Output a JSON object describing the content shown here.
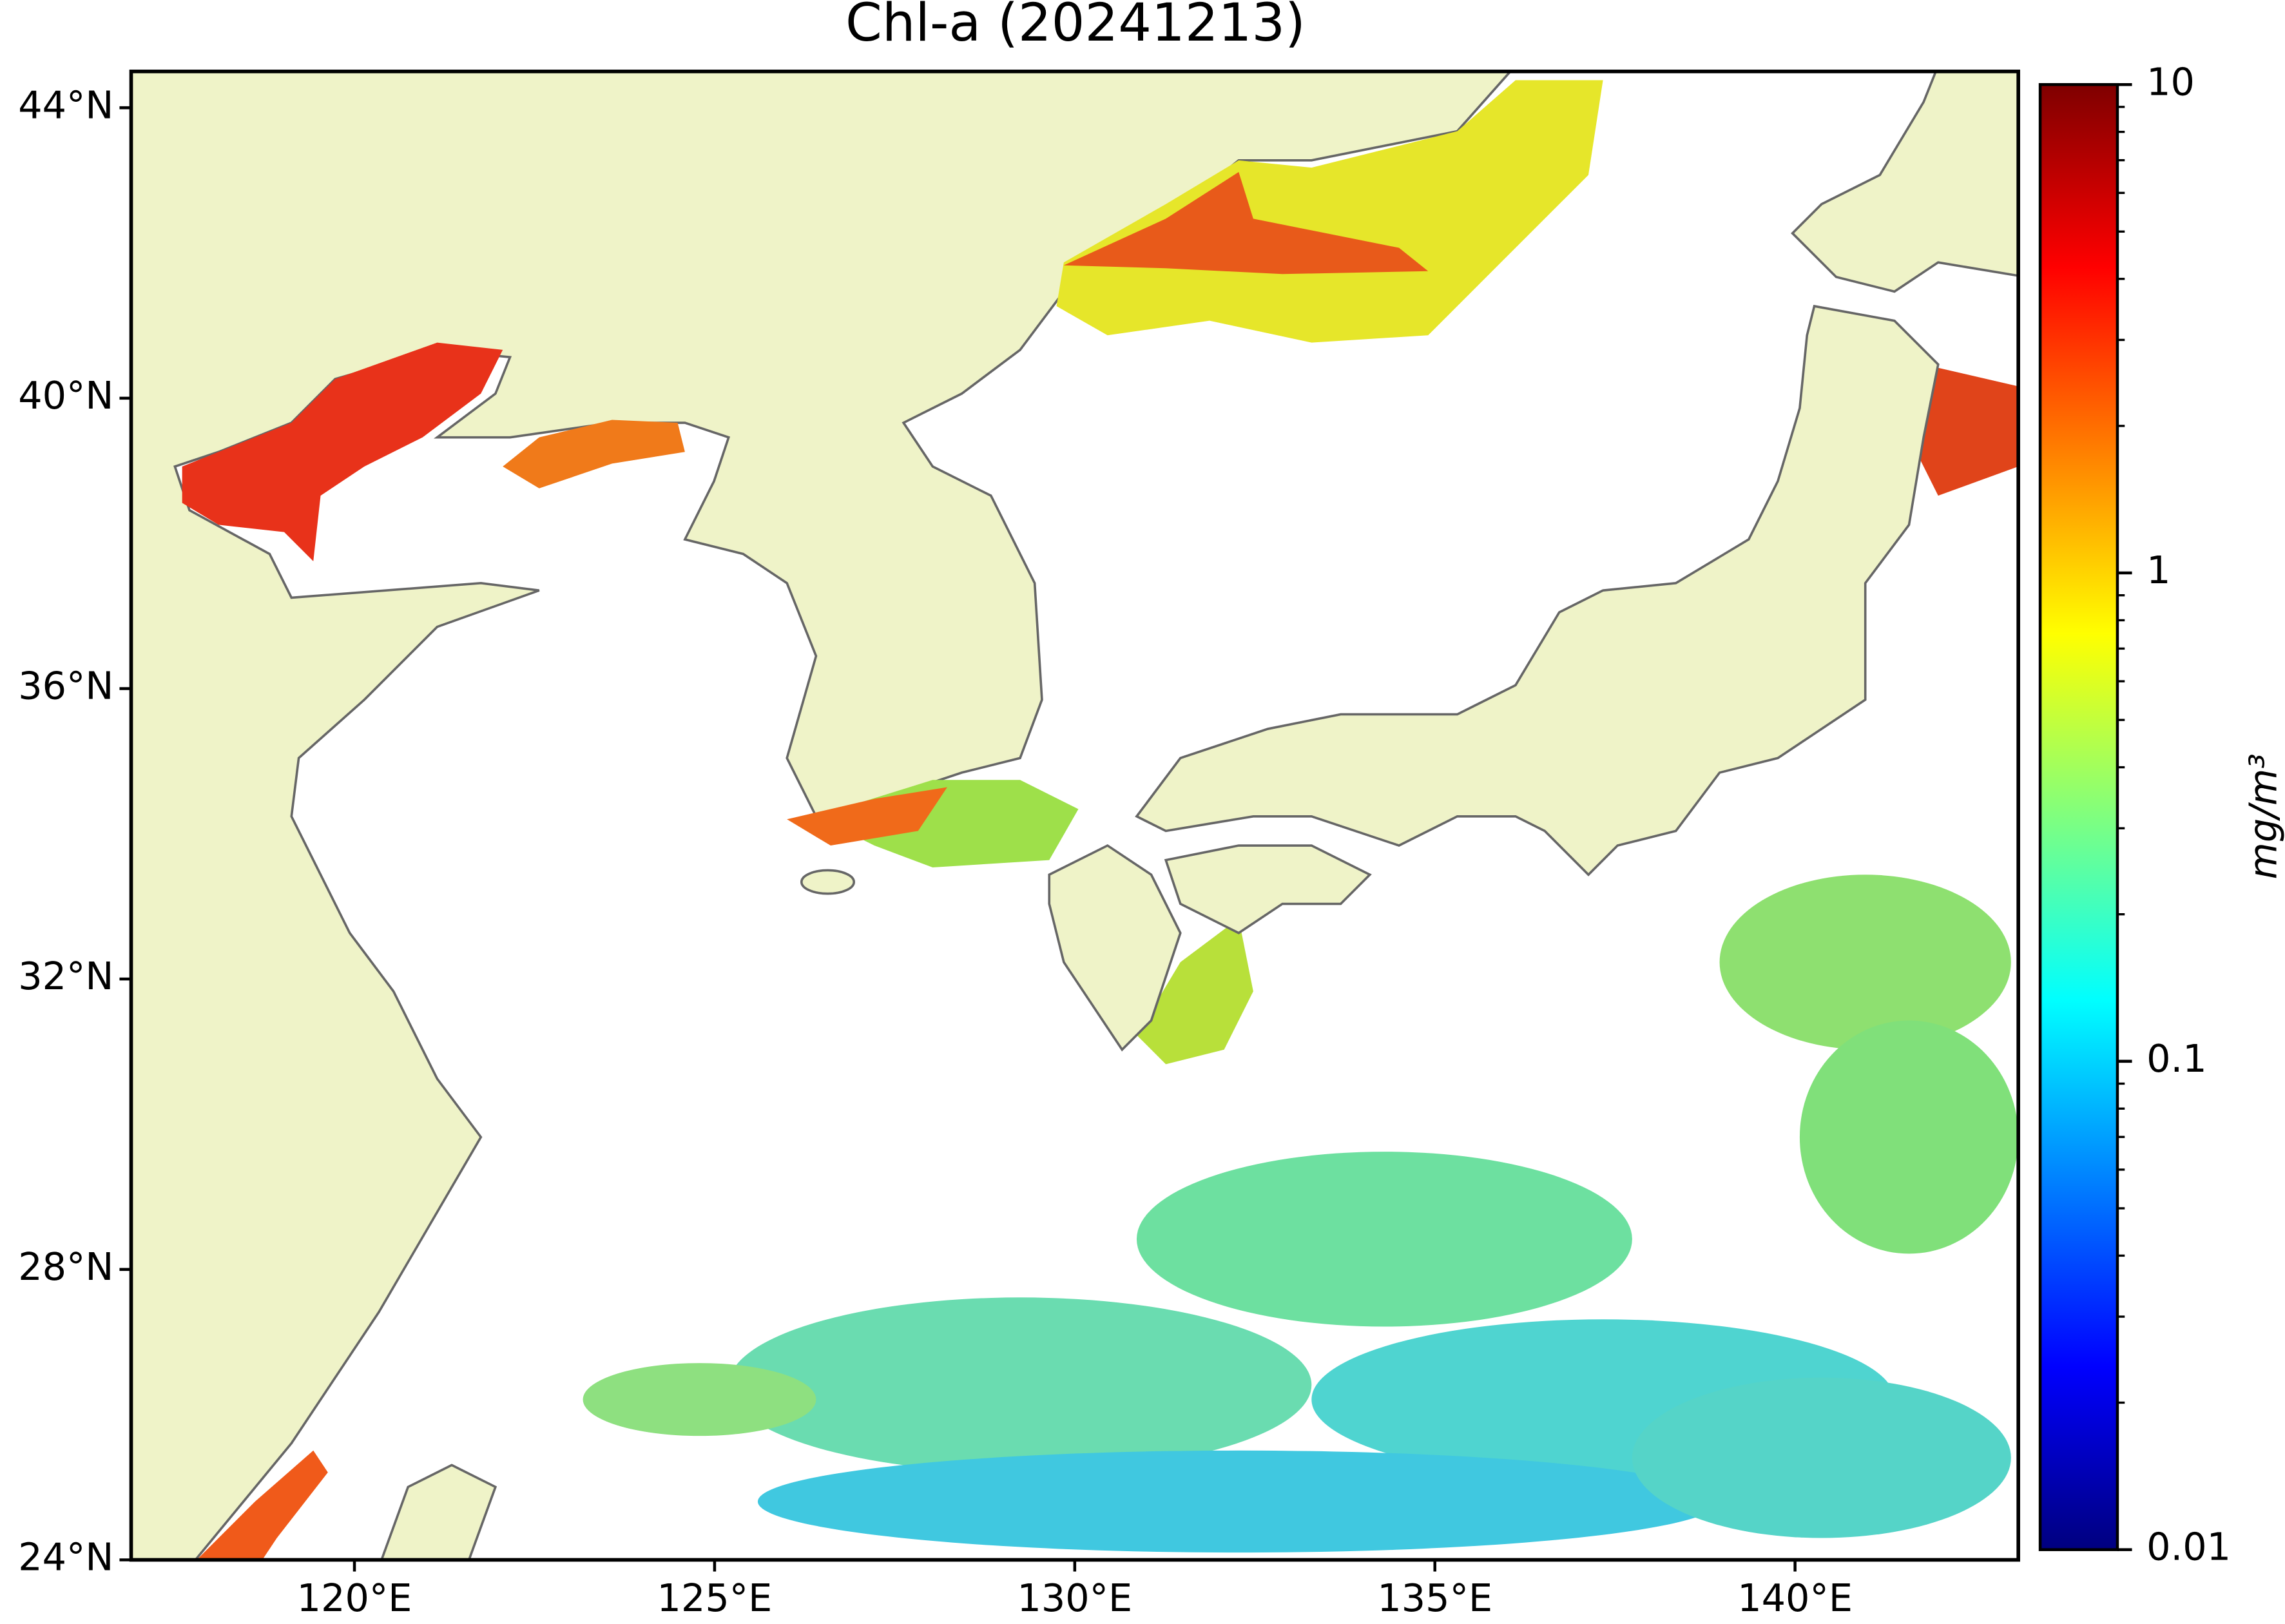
{
  "chart_data": {
    "type": "map",
    "title": "Chl-a (20241213)",
    "xlim": [
      116.9,
      143.1
    ],
    "ylim": [
      24,
      44.5
    ],
    "xticks": [
      {
        "value": 120,
        "label": "120°E"
      },
      {
        "value": 125,
        "label": "125°E"
      },
      {
        "value": 130,
        "label": "130°E"
      },
      {
        "value": 135,
        "label": "135°E"
      },
      {
        "value": 140,
        "label": "140°E"
      }
    ],
    "yticks": [
      {
        "value": 24,
        "label": "24°N"
      },
      {
        "value": 28,
        "label": "28°N"
      },
      {
        "value": 32,
        "label": "32°N"
      },
      {
        "value": 36,
        "label": "36°N"
      },
      {
        "value": 40,
        "label": "40°N"
      },
      {
        "value": 44,
        "label": "44°N"
      }
    ],
    "colorbar": {
      "label": "mg/m³",
      "lim": [
        0.01,
        10
      ],
      "ticks": [
        0.01,
        0.1,
        1,
        10
      ],
      "log": true,
      "colormap": "jet"
    }
  }
}
